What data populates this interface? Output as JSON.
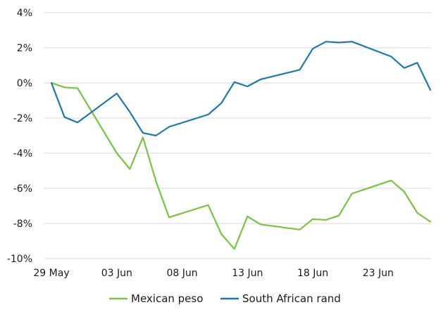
{
  "chart_data": {
    "type": "line",
    "title": "",
    "xlabel": "",
    "ylabel": "",
    "ylim": [
      -10,
      4
    ],
    "y_ticks": [
      -10,
      -8,
      -6,
      -4,
      -2,
      0,
      2,
      4
    ],
    "y_tick_labels": [
      "-10%",
      "-8%",
      "-6%",
      "-4%",
      "-2%",
      "0%",
      "2%",
      "4%"
    ],
    "x_range": [
      "2020-05-29",
      "2020-06-27"
    ],
    "x_ticks": [
      "2020-05-29",
      "2020-06-03",
      "2020-06-08",
      "2020-06-13",
      "2020-06-18",
      "2020-06-23"
    ],
    "x_tick_labels": [
      "29 May",
      "03 Jun",
      "08 Jun",
      "13 Jun",
      "18 Jun",
      "23 Jun"
    ],
    "grid": true,
    "legend_position": "bottom-center",
    "series": [
      {
        "name": "Mexican peso",
        "color": "#78c244",
        "points": [
          [
            "2020-05-29",
            0.0
          ],
          [
            "2020-05-30",
            -0.25
          ],
          [
            "2020-05-31",
            -0.3
          ],
          [
            "2020-06-03",
            -4.0
          ],
          [
            "2020-06-04",
            -4.9
          ],
          [
            "2020-06-05",
            -3.1
          ],
          [
            "2020-06-06",
            -5.6
          ],
          [
            "2020-06-07",
            -7.65
          ],
          [
            "2020-06-10",
            -6.95
          ],
          [
            "2020-06-11",
            -8.6
          ],
          [
            "2020-06-12",
            -9.45
          ],
          [
            "2020-06-13",
            -7.6
          ],
          [
            "2020-06-14",
            -8.05
          ],
          [
            "2020-06-17",
            -8.35
          ],
          [
            "2020-06-18",
            -7.75
          ],
          [
            "2020-06-19",
            -7.8
          ],
          [
            "2020-06-20",
            -7.55
          ],
          [
            "2020-06-21",
            -6.3
          ],
          [
            "2020-06-24",
            -5.55
          ],
          [
            "2020-06-25",
            -6.2
          ],
          [
            "2020-06-26",
            -7.4
          ],
          [
            "2020-06-27",
            -7.9
          ]
        ]
      },
      {
        "name": "South African rand",
        "color": "#1f78a8",
        "points": [
          [
            "2020-05-29",
            0.0
          ],
          [
            "2020-05-30",
            -1.95
          ],
          [
            "2020-05-31",
            -2.25
          ],
          [
            "2020-06-03",
            -0.6
          ],
          [
            "2020-06-04",
            -1.65
          ],
          [
            "2020-06-05",
            -2.85
          ],
          [
            "2020-06-06",
            -3.0
          ],
          [
            "2020-06-07",
            -2.5
          ],
          [
            "2020-06-10",
            -1.8
          ],
          [
            "2020-06-11",
            -1.15
          ],
          [
            "2020-06-12",
            0.05
          ],
          [
            "2020-06-13",
            -0.2
          ],
          [
            "2020-06-14",
            0.2
          ],
          [
            "2020-06-17",
            0.75
          ],
          [
            "2020-06-18",
            1.95
          ],
          [
            "2020-06-19",
            2.35
          ],
          [
            "2020-06-20",
            2.3
          ],
          [
            "2020-06-21",
            2.35
          ],
          [
            "2020-06-24",
            1.5
          ],
          [
            "2020-06-25",
            0.85
          ],
          [
            "2020-06-26",
            1.15
          ],
          [
            "2020-06-27",
            -0.4
          ]
        ]
      }
    ]
  }
}
